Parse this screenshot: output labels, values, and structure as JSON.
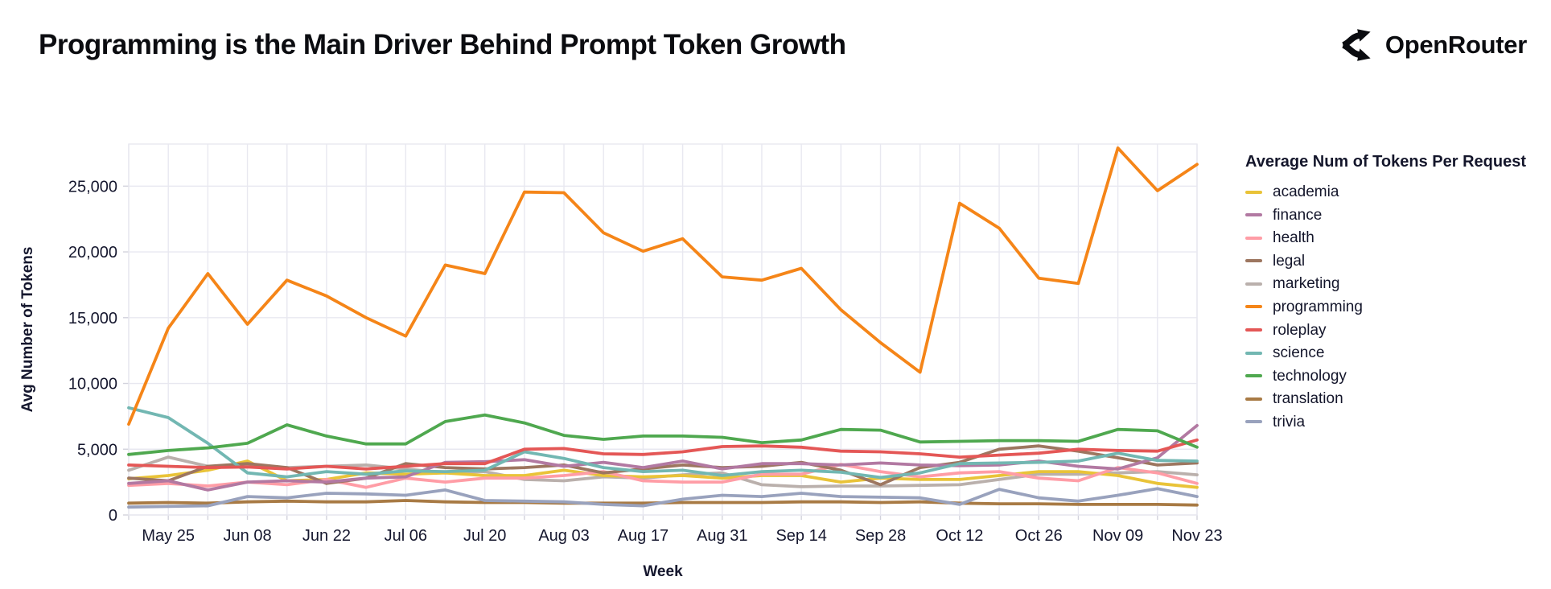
{
  "header": {
    "title": "Programming is the Main Driver Behind Prompt Token Growth",
    "brand_name": "OpenRouter"
  },
  "chart_data": {
    "type": "line",
    "title": "Programming is the Main Driver Behind Prompt Token Growth",
    "xlabel": "Week",
    "ylabel": "Avg Number of Tokens",
    "legend_title": "Average Num of Tokens Per Request",
    "legend_position": "right",
    "grid": true,
    "x_tick_interval_weeks": 1,
    "x_labeled_tick_every": 2,
    "x": [
      "May 18",
      "May 25",
      "Jun 01",
      "Jun 08",
      "Jun 15",
      "Jun 22",
      "Jun 29",
      "Jul 06",
      "Jul 13",
      "Jul 20",
      "Jul 27",
      "Aug 03",
      "Aug 10",
      "Aug 17",
      "Aug 24",
      "Aug 31",
      "Sep 07",
      "Sep 14",
      "Sep 21",
      "Sep 28",
      "Oct 05",
      "Oct 12",
      "Oct 19",
      "Oct 26",
      "Nov 02",
      "Nov 09",
      "Nov 16",
      "Nov 23"
    ],
    "x_tick_labels": [
      "May 25",
      "Jun 08",
      "Jun 22",
      "Jul 06",
      "Jul 20",
      "Aug 03",
      "Aug 17",
      "Aug 31",
      "Sep 14",
      "Sep 28",
      "Oct 12",
      "Oct 26",
      "Nov 09",
      "Nov 23"
    ],
    "y_ticks": [
      0,
      5000,
      10000,
      15000,
      20000,
      25000
    ],
    "ylim": [
      0,
      28200
    ],
    "series": [
      {
        "name": "academia",
        "color": "#e9c338",
        "values": [
          2750,
          3000,
          3400,
          4100,
          2600,
          2700,
          3200,
          3100,
          3200,
          3000,
          3000,
          3400,
          3000,
          2900,
          3000,
          2800,
          3000,
          3000,
          2500,
          2800,
          2700,
          2700,
          3000,
          3300,
          3300,
          3000,
          2400,
          2100
        ]
      },
      {
        "name": "finance",
        "color": "#b279a2",
        "values": [
          2400,
          2600,
          1900,
          2500,
          2600,
          2500,
          2800,
          2900,
          4000,
          4050,
          4200,
          3700,
          4000,
          3600,
          4100,
          3500,
          3900,
          3900,
          3800,
          3950,
          3800,
          3750,
          3800,
          4100,
          3700,
          3500,
          4350,
          6800
        ]
      },
      {
        "name": "health",
        "color": "#ff9da6",
        "values": [
          2250,
          2400,
          2200,
          2500,
          2300,
          2700,
          2100,
          2800,
          2500,
          2800,
          2800,
          3000,
          3300,
          2600,
          2500,
          2500,
          3100,
          3100,
          3850,
          3300,
          2900,
          3200,
          3300,
          2800,
          2600,
          3600,
          3200,
          2400
        ]
      },
      {
        "name": "legal",
        "color": "#9d7660",
        "values": [
          2800,
          2600,
          3700,
          3900,
          3600,
          2400,
          2800,
          3900,
          3600,
          3500,
          3600,
          3800,
          3200,
          3500,
          3800,
          3600,
          3700,
          4000,
          3400,
          2300,
          3600,
          4000,
          5000,
          5250,
          4850,
          4350,
          3800,
          3950
        ]
      },
      {
        "name": "marketing",
        "color": "#bab0ac",
        "values": [
          3400,
          4400,
          3700,
          3700,
          3600,
          3700,
          3800,
          3500,
          3200,
          3300,
          2700,
          2600,
          2900,
          2800,
          3050,
          3200,
          2300,
          2150,
          2200,
          2200,
          2250,
          2300,
          2700,
          3100,
          3100,
          3200,
          3300,
          3050
        ]
      },
      {
        "name": "programming",
        "color": "#f58518",
        "values": [
          6900,
          14200,
          18350,
          14500,
          17850,
          16650,
          15000,
          13600,
          19000,
          18350,
          24550,
          24500,
          21450,
          20050,
          21000,
          18100,
          17850,
          18750,
          15600,
          13100,
          10850,
          23700,
          21800,
          18000,
          17600,
          27900,
          24650,
          26650
        ]
      },
      {
        "name": "roleplay",
        "color": "#e45756",
        "values": [
          3800,
          3700,
          3600,
          3650,
          3500,
          3700,
          3500,
          3700,
          3900,
          3900,
          5000,
          5050,
          4650,
          4600,
          4800,
          5200,
          5250,
          5150,
          4850,
          4800,
          4650,
          4400,
          4550,
          4700,
          5000,
          4900,
          4850,
          5700
        ]
      },
      {
        "name": "science",
        "color": "#72b7b2",
        "values": [
          8150,
          7400,
          5450,
          3200,
          2900,
          3300,
          3100,
          3350,
          3300,
          3400,
          4800,
          4300,
          3600,
          3300,
          3400,
          3000,
          3300,
          3400,
          3250,
          2850,
          3200,
          3900,
          3950,
          4000,
          4100,
          4700,
          4150,
          4100
        ]
      },
      {
        "name": "technology",
        "color": "#4fa84f",
        "values": [
          4600,
          4900,
          5100,
          5450,
          6850,
          6000,
          5400,
          5400,
          7100,
          7600,
          7000,
          6050,
          5750,
          6000,
          6000,
          5900,
          5500,
          5700,
          6500,
          6450,
          5550,
          5600,
          5650,
          5650,
          5600,
          6500,
          6400,
          5150
        ]
      },
      {
        "name": "translation",
        "color": "#a87a44",
        "values": [
          900,
          950,
          900,
          1000,
          1050,
          1000,
          1000,
          1100,
          1000,
          950,
          950,
          900,
          900,
          900,
          950,
          950,
          950,
          1000,
          1000,
          950,
          1000,
          900,
          850,
          850,
          800,
          800,
          800,
          750
        ]
      },
      {
        "name": "trivia",
        "color": "#99a2bd",
        "values": [
          600,
          650,
          700,
          1400,
          1300,
          1650,
          1600,
          1500,
          1900,
          1100,
          1050,
          1000,
          800,
          700,
          1200,
          1500,
          1400,
          1650,
          1400,
          1350,
          1300,
          800,
          1950,
          1300,
          1050,
          1500,
          2000,
          1400
        ]
      }
    ],
    "colors": {
      "grid": "#e8e8f0",
      "tick": "#d2d2dc",
      "text": "#15172e",
      "title": "#0b0c10"
    }
  }
}
